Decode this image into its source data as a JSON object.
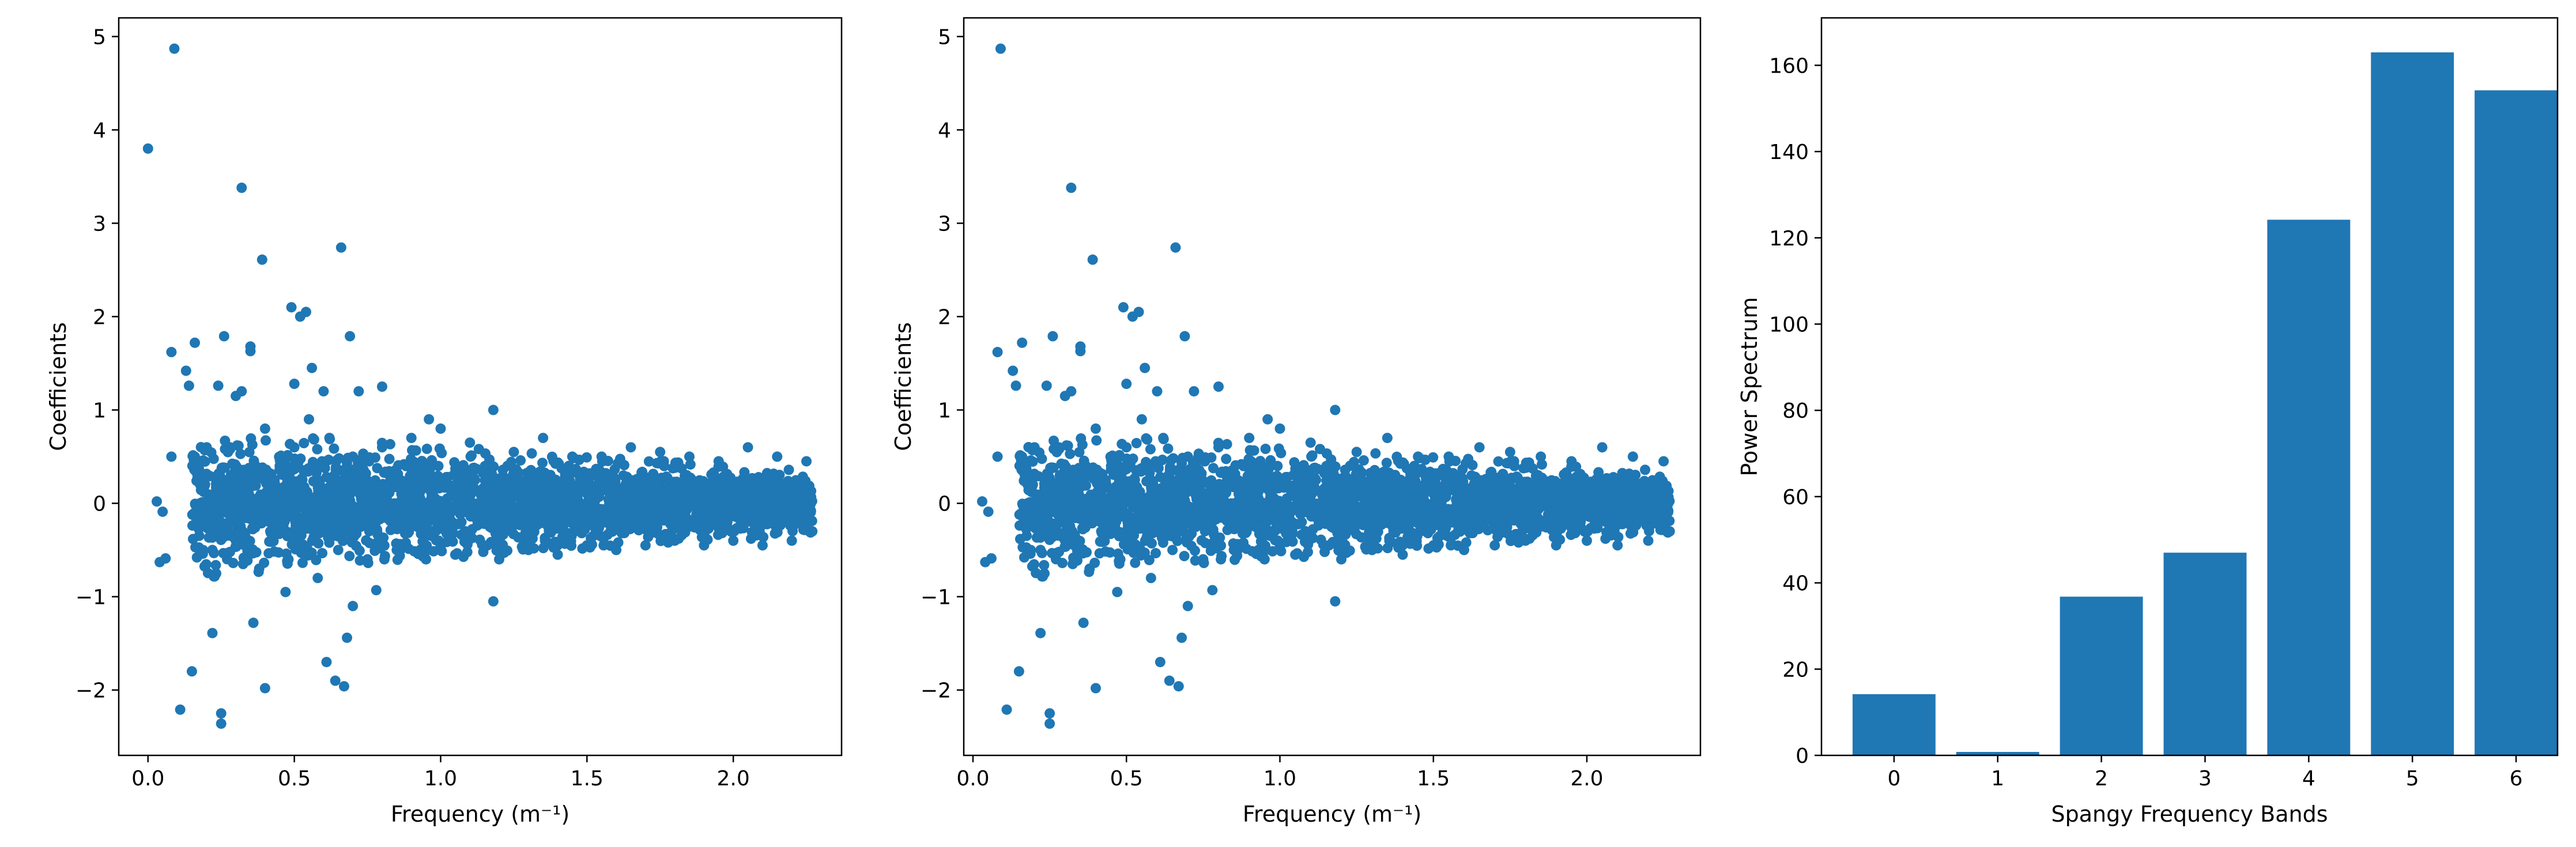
{
  "figure": {
    "colors": {
      "marker": "#1f77b4",
      "bar": "#1f77b4",
      "axes": "#000000"
    }
  },
  "chart_data": [
    {
      "type": "scatter",
      "title": "",
      "xlabel": "Frequency (m⁻¹)",
      "ylabel": "Coefficients",
      "xlim": [
        -0.1,
        2.37
      ],
      "ylim": [
        -2.7,
        5.2
      ],
      "xticks": [
        0.0,
        0.5,
        1.0,
        1.5,
        2.0
      ],
      "xtick_labels": [
        "0.0",
        "0.5",
        "1.0",
        "1.5",
        "2.0"
      ],
      "yticks": [
        -2,
        -1,
        0,
        1,
        2,
        3,
        4,
        5
      ],
      "ytick_labels": [
        "−2",
        "−1",
        "0",
        "1",
        "2",
        "3",
        "4",
        "5"
      ],
      "grid": false,
      "series": [
        {
          "points": [
            [
              0.0,
              3.8
            ],
            [
              0.09,
              4.87
            ],
            [
              0.32,
              3.38
            ],
            [
              0.39,
              2.61
            ],
            [
              0.66,
              2.74
            ],
            [
              0.49,
              2.1
            ],
            [
              0.54,
              2.05
            ],
            [
              0.52,
              2.0
            ],
            [
              0.69,
              1.79
            ],
            [
              0.16,
              1.72
            ],
            [
              0.08,
              1.62
            ],
            [
              0.26,
              1.79
            ],
            [
              0.35,
              1.68
            ],
            [
              0.35,
              1.63
            ],
            [
              0.56,
              1.45
            ],
            [
              0.13,
              1.42
            ],
            [
              0.14,
              1.26
            ],
            [
              0.24,
              1.26
            ],
            [
              0.3,
              1.15
            ],
            [
              0.32,
              1.2
            ],
            [
              0.5,
              1.28
            ],
            [
              0.6,
              1.2
            ],
            [
              0.72,
              1.2
            ],
            [
              0.8,
              1.25
            ],
            [
              0.96,
              0.9
            ],
            [
              1.18,
              1.0
            ],
            [
              0.03,
              0.02
            ],
            [
              0.05,
              -0.09
            ],
            [
              0.04,
              -0.63
            ],
            [
              0.06,
              -0.59
            ],
            [
              0.08,
              0.5
            ],
            [
              0.11,
              -2.21
            ],
            [
              0.15,
              -1.8
            ],
            [
              0.22,
              -1.39
            ],
            [
              0.25,
              -2.36
            ],
            [
              0.25,
              -2.25
            ],
            [
              0.36,
              -1.28
            ],
            [
              0.4,
              -1.98
            ],
            [
              0.47,
              -0.95
            ],
            [
              0.61,
              -1.7
            ],
            [
              0.64,
              -1.9
            ],
            [
              0.67,
              -1.96
            ],
            [
              0.68,
              -1.44
            ],
            [
              1.18,
              -1.05
            ],
            [
              0.7,
              -1.1
            ],
            [
              0.78,
              -0.93
            ],
            [
              0.16,
              0.5
            ],
            [
              0.2,
              0.3
            ],
            [
              0.18,
              -0.2
            ],
            [
              0.22,
              -0.5
            ],
            [
              0.28,
              0.6
            ],
            [
              0.3,
              -0.4
            ],
            [
              0.33,
              0.2
            ],
            [
              0.38,
              -0.7
            ],
            [
              0.4,
              0.8
            ],
            [
              0.42,
              -0.3
            ],
            [
              0.45,
              0.4
            ],
            [
              0.48,
              -0.6
            ],
            [
              0.5,
              0.6
            ],
            [
              0.55,
              0.9
            ],
            [
              0.58,
              -0.8
            ],
            [
              0.62,
              0.7
            ],
            [
              0.65,
              -0.5
            ],
            [
              0.7,
              0.5
            ],
            [
              0.75,
              -0.6
            ],
            [
              0.8,
              0.6
            ],
            [
              0.85,
              -0.5
            ],
            [
              0.9,
              0.7
            ],
            [
              0.95,
              -0.6
            ],
            [
              1.0,
              0.8
            ],
            [
              1.05,
              -0.55
            ],
            [
              1.1,
              0.65
            ],
            [
              1.2,
              -0.6
            ],
            [
              1.25,
              0.55
            ],
            [
              1.3,
              -0.5
            ],
            [
              1.35,
              0.7
            ],
            [
              1.4,
              -0.55
            ],
            [
              1.45,
              0.5
            ],
            [
              1.5,
              -0.45
            ],
            [
              1.55,
              0.5
            ],
            [
              1.6,
              -0.5
            ],
            [
              1.65,
              0.6
            ],
            [
              1.7,
              -0.45
            ],
            [
              1.75,
              0.55
            ],
            [
              1.8,
              -0.4
            ],
            [
              1.85,
              0.5
            ],
            [
              1.9,
              -0.45
            ],
            [
              1.95,
              0.45
            ],
            [
              2.0,
              -0.4
            ],
            [
              2.05,
              0.6
            ],
            [
              2.1,
              -0.45
            ],
            [
              2.15,
              0.5
            ],
            [
              2.2,
              -0.4
            ],
            [
              2.25,
              0.45
            ],
            [
              2.27,
              -0.3
            ]
          ],
          "cloud": {
            "x_range": [
              0.15,
              2.27
            ],
            "center": 0.0,
            "envelope_at_low_x": 0.8,
            "envelope_at_high_x": 0.35
          }
        }
      ]
    },
    {
      "type": "scatter",
      "title": "",
      "xlabel": "Frequency (m⁻¹)",
      "ylabel": "Coefficients",
      "xlim": [
        -0.03,
        2.37
      ],
      "ylim": [
        -2.7,
        5.2
      ],
      "xticks": [
        0.0,
        0.5,
        1.0,
        1.5,
        2.0
      ],
      "xtick_labels": [
        "0.0",
        "0.5",
        "1.0",
        "1.5",
        "2.0"
      ],
      "yticks": [
        -2,
        -1,
        0,
        1,
        2,
        3,
        4,
        5
      ],
      "ytick_labels": [
        "−2",
        "−1",
        "0",
        "1",
        "2",
        "3",
        "4",
        "5"
      ],
      "grid": false,
      "series": [
        {
          "points": [
            [
              0.09,
              4.87
            ],
            [
              0.32,
              3.38
            ],
            [
              0.39,
              2.61
            ],
            [
              0.66,
              2.74
            ],
            [
              0.49,
              2.1
            ],
            [
              0.54,
              2.05
            ],
            [
              0.52,
              2.0
            ],
            [
              0.69,
              1.79
            ],
            [
              0.16,
              1.72
            ],
            [
              0.08,
              1.62
            ],
            [
              0.26,
              1.79
            ],
            [
              0.35,
              1.68
            ],
            [
              0.35,
              1.63
            ],
            [
              0.56,
              1.45
            ],
            [
              0.13,
              1.42
            ],
            [
              0.14,
              1.26
            ],
            [
              0.24,
              1.26
            ],
            [
              0.3,
              1.15
            ],
            [
              0.32,
              1.2
            ],
            [
              0.5,
              1.28
            ],
            [
              0.6,
              1.2
            ],
            [
              0.72,
              1.2
            ],
            [
              0.8,
              1.25
            ],
            [
              0.96,
              0.9
            ],
            [
              1.18,
              1.0
            ],
            [
              0.03,
              0.02
            ],
            [
              0.05,
              -0.09
            ],
            [
              0.04,
              -0.63
            ],
            [
              0.06,
              -0.59
            ],
            [
              0.08,
              0.5
            ],
            [
              0.11,
              -2.21
            ],
            [
              0.15,
              -1.8
            ],
            [
              0.22,
              -1.39
            ],
            [
              0.25,
              -2.36
            ],
            [
              0.25,
              -2.25
            ],
            [
              0.36,
              -1.28
            ],
            [
              0.4,
              -1.98
            ],
            [
              0.47,
              -0.95
            ],
            [
              0.61,
              -1.7
            ],
            [
              0.64,
              -1.9
            ],
            [
              0.67,
              -1.96
            ],
            [
              0.68,
              -1.44
            ],
            [
              1.18,
              -1.05
            ],
            [
              0.7,
              -1.1
            ],
            [
              0.78,
              -0.93
            ],
            [
              0.16,
              0.5
            ],
            [
              0.2,
              0.3
            ],
            [
              0.18,
              -0.2
            ],
            [
              0.22,
              -0.5
            ],
            [
              0.28,
              0.6
            ],
            [
              0.3,
              -0.4
            ],
            [
              0.33,
              0.2
            ],
            [
              0.38,
              -0.7
            ],
            [
              0.4,
              0.8
            ],
            [
              0.42,
              -0.3
            ],
            [
              0.45,
              0.4
            ],
            [
              0.48,
              -0.6
            ],
            [
              0.5,
              0.6
            ],
            [
              0.55,
              0.9
            ],
            [
              0.58,
              -0.8
            ],
            [
              0.62,
              0.7
            ],
            [
              0.65,
              -0.5
            ],
            [
              0.7,
              0.5
            ],
            [
              0.75,
              -0.6
            ],
            [
              0.8,
              0.6
            ],
            [
              0.85,
              -0.5
            ],
            [
              0.9,
              0.7
            ],
            [
              0.95,
              -0.6
            ],
            [
              1.0,
              0.8
            ],
            [
              1.05,
              -0.55
            ],
            [
              1.1,
              0.65
            ],
            [
              1.2,
              -0.6
            ],
            [
              1.25,
              0.55
            ],
            [
              1.3,
              -0.5
            ],
            [
              1.35,
              0.7
            ],
            [
              1.4,
              -0.55
            ],
            [
              1.45,
              0.5
            ],
            [
              1.5,
              -0.45
            ],
            [
              1.55,
              0.5
            ],
            [
              1.6,
              -0.5
            ],
            [
              1.65,
              0.6
            ],
            [
              1.7,
              -0.45
            ],
            [
              1.75,
              0.55
            ],
            [
              1.8,
              -0.4
            ],
            [
              1.85,
              0.5
            ],
            [
              1.9,
              -0.45
            ],
            [
              1.95,
              0.45
            ],
            [
              2.0,
              -0.4
            ],
            [
              2.05,
              0.6
            ],
            [
              2.1,
              -0.45
            ],
            [
              2.15,
              0.5
            ],
            [
              2.2,
              -0.4
            ],
            [
              2.25,
              0.45
            ],
            [
              2.27,
              -0.3
            ]
          ],
          "cloud": {
            "x_range": [
              0.15,
              2.27
            ],
            "center": 0.0,
            "envelope_at_low_x": 0.8,
            "envelope_at_high_x": 0.35
          }
        }
      ]
    },
    {
      "type": "bar",
      "title": "",
      "xlabel": "Spangy Frequency Bands",
      "ylabel": "Power Spectrum",
      "categories": [
        "0",
        "1",
        "2",
        "3",
        "4",
        "5",
        "6"
      ],
      "values": [
        14.2,
        0.8,
        36.8,
        47.0,
        124.2,
        163.0,
        154.2
      ],
      "xlim": [
        -0.7,
        6.4
      ],
      "ylim": [
        0,
        171
      ],
      "yticks": [
        0,
        20,
        40,
        60,
        80,
        100,
        120,
        140,
        160
      ],
      "ytick_labels": [
        "0",
        "20",
        "40",
        "60",
        "80",
        "100",
        "120",
        "140",
        "160"
      ],
      "grid": false
    }
  ]
}
